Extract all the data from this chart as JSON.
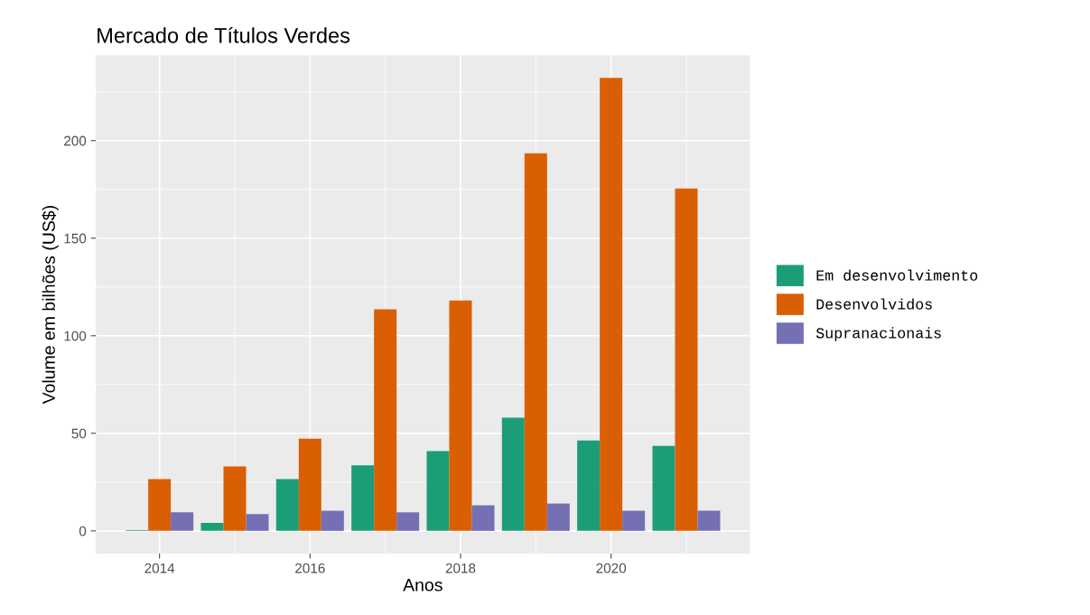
{
  "chart_data": {
    "type": "bar",
    "title": "Mercado de Títulos Verdes",
    "xlabel": "Anos",
    "ylabel": "Volume em bilhões (US$)",
    "x": [
      2014,
      2015,
      2016,
      2017,
      2018,
      2019,
      2020,
      2021
    ],
    "series": [
      {
        "name": "Em desenvolvimento",
        "color": "#1b9e77",
        "values": [
          0.4,
          4.1,
          26.5,
          33.6,
          40.9,
          58.0,
          46.3,
          43.5
        ]
      },
      {
        "name": "Desenvolvidos",
        "color": "#d95f02",
        "values": [
          26.5,
          33.0,
          47.2,
          113.6,
          118.1,
          193.5,
          232.1,
          175.4
        ]
      },
      {
        "name": "Supranacionais",
        "color": "#7570b3",
        "values": [
          9.5,
          8.6,
          10.3,
          9.5,
          13.1,
          14.0,
          10.3,
          10.3
        ]
      }
    ],
    "xlim": [
      2013.155,
      2021.845
    ],
    "xticks": [
      2014,
      2016,
      2018,
      2020
    ],
    "ylim": [
      -11.6,
      243.7
    ],
    "yticks": [
      0,
      50,
      100,
      150,
      200
    ],
    "grid": true,
    "legend": "right"
  }
}
